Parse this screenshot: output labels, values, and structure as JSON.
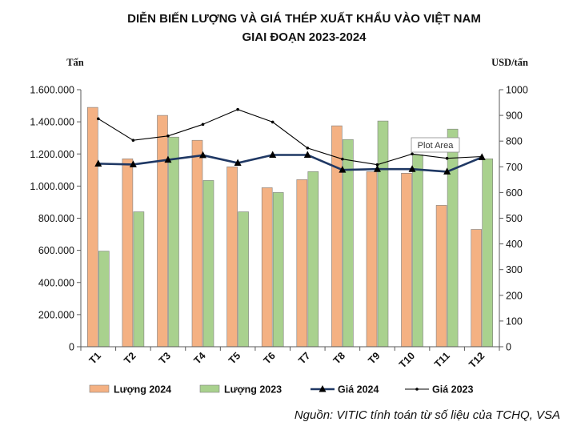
{
  "chart_data": {
    "type": "bar",
    "title_line1": "DIỄN BIẾN LƯỢNG VÀ GIÁ THÉP XUẤT KHẨU VÀO VIỆT NAM",
    "title_line2": "GIAI ĐOẠN 2023-2024",
    "ylabel_left": "Tấn",
    "ylabel_right": "USD/tấn",
    "categories": [
      "T1",
      "T2",
      "T3",
      "T4",
      "T5",
      "T6",
      "T7",
      "T8",
      "T9",
      "T10",
      "T11",
      "T12"
    ],
    "ylim_left": [
      0,
      1600000
    ],
    "ylim_right": [
      0,
      1000
    ],
    "yticks_left": [
      "0",
      "200.000",
      "400.000",
      "600.000",
      "800.000",
      "1.000.000",
      "1.200.000",
      "1.400.000",
      "1.600.000"
    ],
    "yticks_right": [
      "0",
      "100",
      "200",
      "300",
      "400",
      "500",
      "600",
      "700",
      "800",
      "900",
      "1000"
    ],
    "series": [
      {
        "name": "Lượng 2024",
        "kind": "bar",
        "axis": "left",
        "color": "#f4b183",
        "values": [
          1490000,
          1170000,
          1440000,
          1285000,
          1120000,
          990000,
          1040000,
          1375000,
          1090000,
          1080000,
          880000,
          730000
        ]
      },
      {
        "name": "Lượng 2023",
        "kind": "bar",
        "axis": "left",
        "color": "#a9d18e",
        "values": [
          595000,
          840000,
          1305000,
          1035000,
          840000,
          960000,
          1090000,
          1290000,
          1405000,
          1195000,
          1355000,
          1170000
        ]
      },
      {
        "name": "Giá 2024",
        "kind": "line",
        "axis": "right",
        "color": "#1f3864",
        "values": [
          712,
          709,
          727,
          745,
          715,
          746,
          746,
          688,
          691,
          691,
          681,
          737
        ]
      },
      {
        "name": "Giá 2023",
        "kind": "line",
        "axis": "right",
        "color": "#000000",
        "values": [
          887,
          803,
          820,
          865,
          923,
          874,
          773,
          730,
          708,
          750,
          733,
          740
        ]
      }
    ],
    "grid": false,
    "legend_position": "bottom",
    "tooltip": "Plot Area",
    "source": "Nguồn: VITIC tính toán từ số liệu của TCHQ, VSA"
  }
}
